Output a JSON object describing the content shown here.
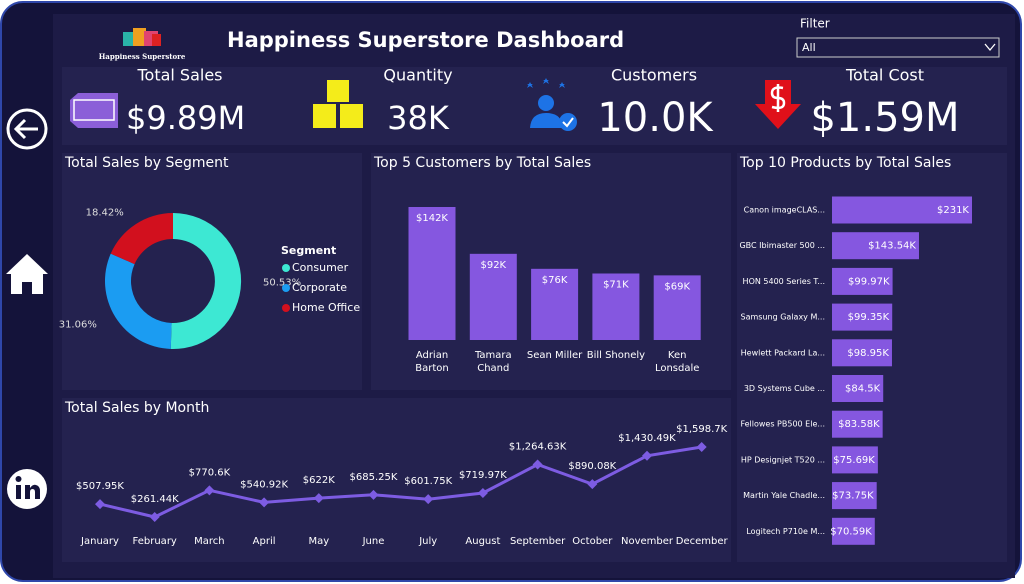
{
  "header": {
    "logo_text": "Happiness Superstore",
    "title": "Happiness Superstore Dashboard",
    "filter_label": "Filter",
    "filter_value": "All"
  },
  "kpis": [
    {
      "label": "Total Sales",
      "value": "$9.89M"
    },
    {
      "label": "Quantity",
      "value": "38K"
    },
    {
      "label": "Customers",
      "value": "10.0K"
    },
    {
      "label": "Total Cost",
      "value": "$1.59M"
    }
  ],
  "chart_data": [
    {
      "type": "pie",
      "title": "Total Sales by Segment",
      "legend_title": "Segment",
      "categories": [
        "Consumer",
        "Corporate",
        "Home Office"
      ],
      "values": [
        50.53,
        31.06,
        18.42
      ],
      "value_labels": [
        "50.53%",
        "31.06%",
        "18.42%"
      ],
      "colors": [
        "#3de8d3",
        "#1b9cf2",
        "#d2101e"
      ]
    },
    {
      "type": "bar",
      "title": "Top 5 Customers by Total Sales",
      "categories": [
        "Adrian Barton",
        "Tamara Chand",
        "Sean Miller",
        "Bill Shonely",
        "Ken Lonsdale"
      ],
      "values": [
        142000,
        92000,
        76000,
        71000,
        69000
      ],
      "value_labels": [
        "$142K",
        "$92K",
        "$76K",
        "$71K",
        "$69K"
      ],
      "color": "#8557e0"
    },
    {
      "type": "hbar",
      "title": "Top 10 Products by Total Sales",
      "categories": [
        "Canon imageCLAS...",
        "GBC Ibimaster 500 ...",
        "HON 5400 Series T...",
        "Samsung Galaxy M...",
        "Hewlett Packard La...",
        "3D Systems Cube ...",
        "Fellowes PB500 Ele...",
        "HP Designjet T520 ...",
        "Martin Yale Chadle...",
        "Logitech P710e M..."
      ],
      "values": [
        231000,
        143540,
        99970,
        99350,
        98950,
        84500,
        83580,
        75690,
        73750,
        70590
      ],
      "value_labels": [
        "$231K",
        "$143.54K",
        "$99.97K",
        "$99.35K",
        "$98.95K",
        "$84.5K",
        "$83.58K",
        "$75.69K",
        "$73.75K",
        "$70.59K"
      ],
      "color": "#8557e0"
    },
    {
      "type": "line",
      "title": "Total Sales by Month",
      "categories": [
        "January",
        "February",
        "March",
        "April",
        "May",
        "June",
        "July",
        "August",
        "September",
        "October",
        "November",
        "December"
      ],
      "values": [
        507950,
        261440,
        770600,
        540920,
        622000,
        685250,
        601750,
        719970,
        1264630,
        890080,
        1430490,
        1598700
      ],
      "value_labels": [
        "$507.95K",
        "$261.44K",
        "$770.6K",
        "$540.92K",
        "$622K",
        "$685.25K",
        "$601.75K",
        "$719.97K",
        "$1,264.63K",
        "$890.08K",
        "$1,430.49K",
        "$1,598.7K"
      ],
      "color": "#7d5ce2"
    }
  ]
}
